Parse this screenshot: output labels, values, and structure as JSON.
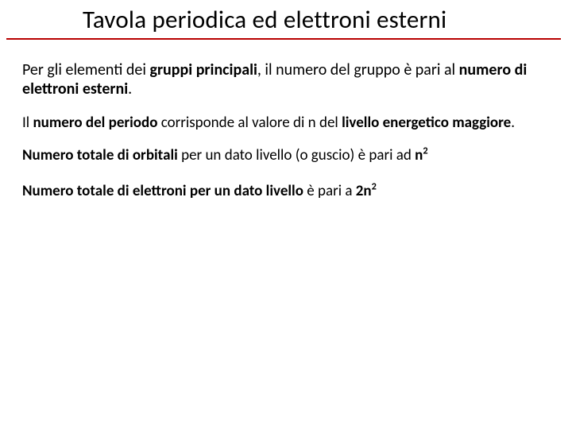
{
  "colors": {
    "underline": "#b80000",
    "text": "#000000",
    "background": "#ffffff"
  },
  "typography": {
    "title_fontsize": 31,
    "body_fontsize": 20,
    "small_body_fontsize": 19,
    "font_family": "Calibri"
  },
  "title": "Tavola periodica ed elettroni esterni",
  "p1": {
    "t1": "Per gli elementi dei ",
    "b1": "gruppi principali",
    "t2": ", il numero del gruppo è pari al ",
    "b2": "numero di elettroni esterni",
    "t3": "."
  },
  "p2": {
    "t1": "Il ",
    "b1": "numero del periodo",
    "t2": " corrisponde al valore di n del ",
    "b2": "livello energetico maggiore",
    "t3": "."
  },
  "p3": {
    "b1": "Numero totale di orbitali",
    "t1": " per un dato livello (o guscio) è pari ad ",
    "b2": "n",
    "sup1": "2"
  },
  "p4": {
    "b1": "Numero totale di elettroni per un dato livello",
    "t1": " è pari a ",
    "b2": "2n",
    "sup1": "2"
  }
}
